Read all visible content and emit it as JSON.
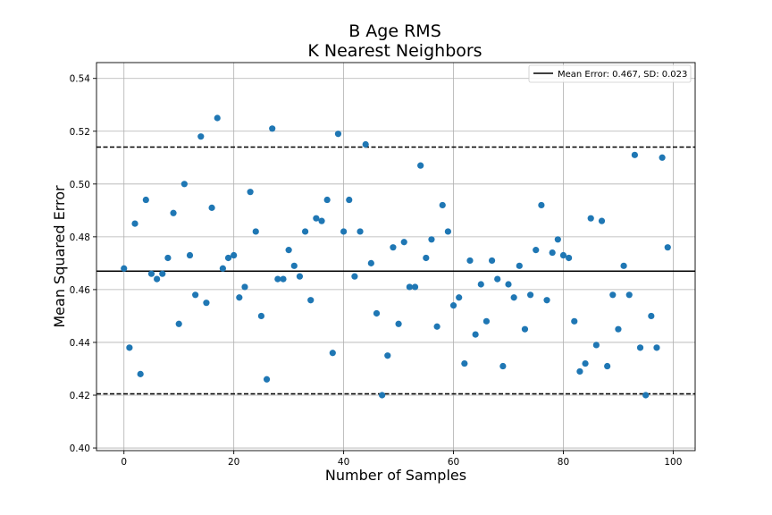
{
  "chart_data": {
    "type": "scatter",
    "title": [
      "B Age RMS",
      "K Nearest Neighbors"
    ],
    "xlabel": "Number of Samples",
    "ylabel": "Mean Squared Error",
    "xlim": [
      -5,
      104
    ],
    "ylim": [
      0.399,
      0.546
    ],
    "xticks": [
      0,
      20,
      40,
      60,
      80,
      100
    ],
    "yticks": [
      0.4,
      0.42,
      0.44,
      0.46,
      0.48,
      0.5,
      0.52,
      0.54
    ],
    "xtick_labels": [
      "0",
      "20",
      "40",
      "60",
      "80",
      "100"
    ],
    "ytick_labels": [
      "0.40",
      "0.42",
      "0.44",
      "0.46",
      "0.48",
      "0.50",
      "0.52",
      "0.54"
    ],
    "grid": true,
    "legend_position": "top-right",
    "legend": [
      {
        "label": "Mean Error: 0.467, SD: 0.023"
      }
    ],
    "point_color": "#1f77b4",
    "mean": 0.467,
    "upper": 0.514,
    "lower": 0.4205,
    "x": [
      0,
      1,
      2,
      3,
      4,
      5,
      6,
      7,
      8,
      9,
      10,
      11,
      12,
      13,
      14,
      15,
      16,
      17,
      18,
      19,
      20,
      21,
      22,
      23,
      24,
      25,
      26,
      27,
      28,
      29,
      30,
      31,
      32,
      33,
      34,
      35,
      36,
      37,
      38,
      39,
      40,
      41,
      42,
      43,
      44,
      45,
      46,
      47,
      48,
      49,
      50,
      51,
      52,
      53,
      54,
      55,
      56,
      57,
      58,
      59,
      60,
      61,
      62,
      63,
      64,
      65,
      66,
      67,
      68,
      69,
      70,
      71,
      72,
      73,
      74,
      75,
      76,
      77,
      78,
      79,
      80,
      81,
      82,
      83,
      84,
      85,
      86,
      87,
      88,
      89,
      90,
      91,
      92,
      93,
      94,
      95,
      96,
      97,
      98,
      99
    ],
    "y": [
      0.468,
      0.438,
      0.485,
      0.428,
      0.494,
      0.466,
      0.464,
      0.466,
      0.472,
      0.489,
      0.447,
      0.5,
      0.473,
      0.458,
      0.518,
      0.455,
      0.491,
      0.525,
      0.468,
      0.472,
      0.473,
      0.457,
      0.461,
      0.497,
      0.482,
      0.45,
      0.426,
      0.521,
      0.464,
      0.464,
      0.475,
      0.469,
      0.465,
      0.482,
      0.456,
      0.487,
      0.486,
      0.494,
      0.436,
      0.519,
      0.482,
      0.494,
      0.465,
      0.482,
      0.515,
      0.47,
      0.451,
      0.42,
      0.435,
      0.476,
      0.447,
      0.478,
      0.461,
      0.461,
      0.507,
      0.472,
      0.479,
      0.446,
      0.492,
      0.482,
      0.454,
      0.457,
      0.432,
      0.471,
      0.443,
      0.462,
      0.448,
      0.471,
      0.464,
      0.431,
      0.462,
      0.457,
      0.469,
      0.445,
      0.458,
      0.475,
      0.492,
      0.456,
      0.474,
      0.479,
      0.473,
      0.472,
      0.448,
      0.429,
      0.432,
      0.487,
      0.439,
      0.486,
      0.431,
      0.458,
      0.445,
      0.469,
      0.458,
      0.511,
      0.438,
      0.42,
      0.45,
      0.438,
      0.51,
      0.476
    ]
  }
}
